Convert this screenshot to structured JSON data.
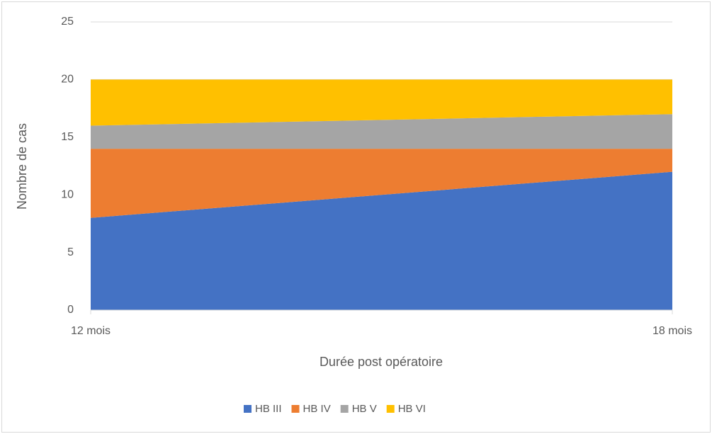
{
  "chart_data": {
    "type": "stacked_area",
    "x_label": "Durée post opératoire",
    "y_label": "Nombre de cas",
    "categories": [
      "12 mois",
      "18 mois"
    ],
    "series": [
      {
        "name": "HB III",
        "color": "#4472c4",
        "values": [
          8,
          12
        ]
      },
      {
        "name": "HB IV",
        "color": "#ed7d31",
        "values": [
          6,
          2
        ]
      },
      {
        "name": "HB V",
        "color": "#a5a5a5",
        "values": [
          2,
          3
        ]
      },
      {
        "name": "HB VI",
        "color": "#ffc000",
        "values": [
          4,
          3
        ]
      }
    ],
    "ylim": [
      0,
      25
    ],
    "yticks": [
      0,
      5,
      10,
      15,
      20,
      25
    ],
    "grid": true,
    "legend": "bottom"
  }
}
